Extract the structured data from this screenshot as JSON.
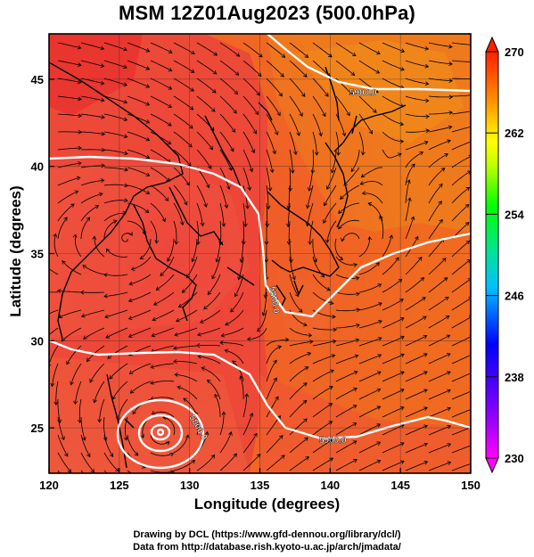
{
  "title": "MSM 12Z01Aug2023 (500.0hPa)",
  "xlabel": "Longitude (degrees)",
  "ylabel": "Latitude  (degrees)",
  "x_ticks": [
    "120",
    "125",
    "130",
    "135",
    "140",
    "145",
    "150"
  ],
  "y_ticks": [
    "25",
    "30",
    "35",
    "40",
    "45"
  ],
  "colorbar_labels": [
    "270",
    "262",
    "254",
    "246",
    "238",
    "230"
  ],
  "contour_labels": [
    "5900.0",
    "5880.0",
    "5900.0",
    "5800.0"
  ],
  "credits": {
    "line1": "Drawing by DCL (https://www.gfd-dennou.org/library/dcl/)",
    "line2": "Data from http://database.rish.kyoto-u.ac.jp/arch/jmadata/"
  },
  "chart_data": {
    "type": "heatmap",
    "title": "MSM 12Z01Aug2023 (500.0hPa)",
    "xlabel": "Longitude (degrees)",
    "ylabel": "Latitude  (degrees)",
    "xlim": [
      120,
      150
    ],
    "ylim": [
      22.4,
      47.6
    ],
    "colorbar_range": [
      230,
      270
    ],
    "colormap": [
      "#ff00ff",
      "#0000ff",
      "#00ffff",
      "#00ff00",
      "#ffff00",
      "#ff8000",
      "#ff0000"
    ],
    "grid": true,
    "overlays": [
      "streamlines",
      "coastlines",
      "height contours"
    ]
  }
}
